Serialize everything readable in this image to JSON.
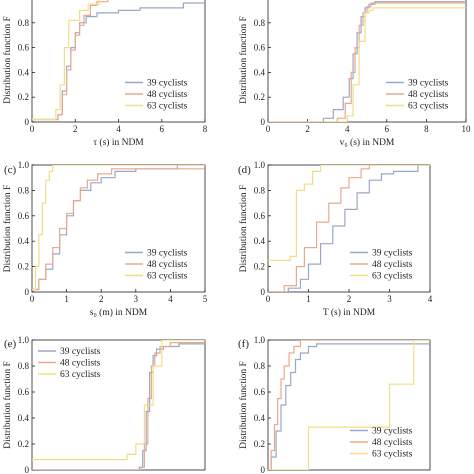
{
  "figure": {
    "series_colors": {
      "39 cyclists": "#9aa8c8",
      "48 cyclists": "#e9a98c",
      "63 cyclists": "#f2dd85"
    },
    "axis_color": "#222222"
  },
  "chart_data": [
    {
      "id": "a",
      "panel_label": "",
      "type": "line",
      "step": true,
      "xlabel": "τ (s) in NDM",
      "ylabel": "Distribution function F",
      "xlim": [
        0,
        8
      ],
      "ylim": [
        0,
        1
      ],
      "xticks": [
        "0",
        "2",
        "4",
        "6",
        "8"
      ],
      "yticks": [
        "0",
        "0.2",
        "0.4",
        "0.6",
        "0.8"
      ],
      "legend_position": "bottom-right",
      "legend": [
        "39 cyclists",
        "48 cyclists",
        "63 cyclists"
      ],
      "series": [
        {
          "name": "39 cyclists",
          "x": [
            0,
            1.2,
            1.4,
            1.6,
            1.8,
            2.0,
            2.2,
            2.5,
            3.0,
            4.0,
            5.0,
            7.0,
            8.0
          ],
          "y": [
            0.02,
            0.06,
            0.25,
            0.45,
            0.6,
            0.72,
            0.8,
            0.85,
            0.88,
            0.9,
            0.92,
            0.96,
            0.96
          ]
        },
        {
          "name": "48 cyclists",
          "x": [
            0,
            1.2,
            1.4,
            1.6,
            1.8,
            2.0,
            2.2,
            2.4,
            2.7,
            3.0,
            3.5,
            5.0,
            8.0
          ],
          "y": [
            0.02,
            0.06,
            0.22,
            0.42,
            0.58,
            0.7,
            0.78,
            0.86,
            0.94,
            0.97,
            1.0,
            1.0,
            1.0
          ]
        },
        {
          "name": "63 cyclists",
          "x": [
            0,
            1.1,
            1.3,
            1.5,
            1.7,
            2.0,
            2.2,
            2.6,
            3.1,
            5.0,
            8.0
          ],
          "y": [
            0.02,
            0.1,
            0.3,
            0.6,
            0.82,
            0.82,
            0.9,
            0.95,
            1.0,
            1.0,
            1.0
          ]
        }
      ]
    },
    {
      "id": "b",
      "panel_label": "",
      "type": "line",
      "step": true,
      "xlabel": "v₀ (s) in NDM",
      "ylabel": "Distribution function F",
      "xlim": [
        0,
        10
      ],
      "ylim": [
        0,
        1
      ],
      "xticks": [
        "0",
        "2",
        "4",
        "6",
        "8",
        "10"
      ],
      "yticks": [
        "0",
        "0.2",
        "0.4",
        "0.6",
        "0.8"
      ],
      "legend_position": "bottom-right",
      "legend": [
        "39 cyclists",
        "48 cyclists",
        "63 cyclists"
      ],
      "series": [
        {
          "name": "39 cyclists",
          "x": [
            0,
            2.8,
            3.3,
            3.8,
            4.1,
            4.3,
            4.5,
            4.7,
            4.9,
            5.1,
            5.4,
            10.0
          ],
          "y": [
            0.0,
            0.03,
            0.1,
            0.2,
            0.35,
            0.55,
            0.72,
            0.85,
            0.92,
            0.95,
            0.97,
            0.97
          ]
        },
        {
          "name": "48 cyclists",
          "x": [
            0,
            3.5,
            3.9,
            4.2,
            4.4,
            4.6,
            4.8,
            5.0,
            5.2,
            10.0
          ],
          "y": [
            0.0,
            0.03,
            0.15,
            0.4,
            0.6,
            0.78,
            0.88,
            0.93,
            0.96,
            0.96
          ]
        },
        {
          "name": "63 cyclists",
          "x": [
            0,
            4.0,
            4.3,
            4.6,
            4.9,
            5.1,
            5.3,
            10.0
          ],
          "y": [
            0.0,
            0.05,
            0.3,
            0.65,
            0.88,
            0.9,
            0.92,
            0.92
          ]
        }
      ]
    },
    {
      "id": "c",
      "panel_label": "(c)",
      "type": "line",
      "step": true,
      "xlabel": "s₀ (m) in NDM",
      "ylabel": "Distribution function F",
      "xlim": [
        0,
        5
      ],
      "ylim": [
        0,
        1
      ],
      "xticks": [
        "0",
        "1",
        "2",
        "3",
        "4",
        "5"
      ],
      "yticks": [
        "0",
        "0.2",
        "0.4",
        "0.6",
        "0.8",
        "1.0"
      ],
      "legend_position": "bottom-right",
      "legend": [
        "39 cyclists",
        "48 cyclists",
        "63 cyclists"
      ],
      "series": [
        {
          "name": "39 cyclists",
          "x": [
            0,
            0.2,
            0.4,
            0.6,
            0.8,
            1.0,
            1.2,
            1.4,
            1.7,
            2.0,
            2.4,
            3.0,
            4.2,
            5.0
          ],
          "y": [
            0.02,
            0.1,
            0.18,
            0.3,
            0.45,
            0.6,
            0.72,
            0.8,
            0.86,
            0.9,
            0.95,
            0.97,
            1.0,
            1.0
          ]
        },
        {
          "name": "48 cyclists",
          "x": [
            0,
            0.2,
            0.4,
            0.6,
            0.8,
            1.0,
            1.2,
            1.4,
            1.6,
            1.9,
            2.3,
            5.0
          ],
          "y": [
            0.02,
            0.1,
            0.22,
            0.35,
            0.5,
            0.62,
            0.72,
            0.82,
            0.88,
            0.93,
            0.97,
            0.97
          ]
        },
        {
          "name": "63 cyclists",
          "x": [
            0,
            0.1,
            0.2,
            0.3,
            0.4,
            0.5,
            0.6,
            5.0
          ],
          "y": [
            0.02,
            0.2,
            0.45,
            0.7,
            0.88,
            0.95,
            1.0,
            1.0
          ]
        }
      ]
    },
    {
      "id": "d",
      "panel_label": "(d)",
      "type": "line",
      "step": true,
      "xlabel": "T (s) in NDM",
      "ylabel": "Distribution function F",
      "xlim": [
        0,
        4
      ],
      "ylim": [
        0,
        1
      ],
      "xticks": [
        "0",
        "1",
        "2",
        "3",
        "4"
      ],
      "yticks": [
        "0",
        "0.2",
        "0.4",
        "0.6",
        "0.8",
        "1.0"
      ],
      "legend_position": "bottom-right",
      "legend": [
        "39 cyclists",
        "48 cyclists",
        "63 cyclists"
      ],
      "series": [
        {
          "name": "39 cyclists",
          "x": [
            0,
            0.5,
            0.8,
            1.0,
            1.3,
            1.6,
            1.9,
            2.2,
            2.5,
            2.8,
            3.1,
            3.7,
            4.0
          ],
          "y": [
            0.0,
            0.03,
            0.1,
            0.22,
            0.38,
            0.52,
            0.65,
            0.78,
            0.88,
            0.93,
            0.95,
            1.0,
            1.0
          ]
        },
        {
          "name": "48 cyclists",
          "x": [
            0,
            0.4,
            0.7,
            0.9,
            1.2,
            1.5,
            1.8,
            2.0,
            2.3,
            2.5,
            4.0
          ],
          "y": [
            0.0,
            0.05,
            0.2,
            0.35,
            0.55,
            0.7,
            0.82,
            0.9,
            0.97,
            1.0,
            1.0
          ]
        },
        {
          "name": "63 cyclists",
          "x": [
            0,
            0.55,
            0.7,
            0.9,
            1.1,
            1.3,
            4.0
          ],
          "y": [
            0.25,
            0.28,
            0.8,
            0.85,
            0.95,
            1.0,
            1.0
          ]
        }
      ]
    },
    {
      "id": "e",
      "panel_label": "(e)",
      "type": "line",
      "step": true,
      "xlabel": "",
      "ylabel": "Distribution function F",
      "xlim": [
        0,
        1
      ],
      "ylim": [
        0,
        1
      ],
      "xticks": [],
      "yticks": [
        "0",
        "0.2",
        "0.4",
        "0.6",
        "0.8",
        "1.0"
      ],
      "legend_position": "top-left",
      "legend": [
        "39 cyclists",
        "48 cyclists",
        "63 cyclists"
      ],
      "series": [
        {
          "name": "39 cyclists",
          "x": [
            0,
            0.62,
            0.64,
            0.66,
            0.68,
            0.7,
            0.72,
            0.76,
            0.85,
            1.0
          ],
          "y": [
            0.0,
            0.02,
            0.15,
            0.45,
            0.75,
            0.88,
            0.93,
            0.95,
            0.97,
            0.97
          ]
        },
        {
          "name": "48 cyclists",
          "x": [
            0,
            0.63,
            0.65,
            0.67,
            0.69,
            0.71,
            0.74,
            0.8,
            1.0
          ],
          "y": [
            0.0,
            0.02,
            0.2,
            0.55,
            0.8,
            0.9,
            0.95,
            0.98,
            0.98
          ]
        },
        {
          "name": "63 cyclists",
          "x": [
            0,
            0.55,
            0.6,
            0.65,
            0.7,
            0.75,
            1.0
          ],
          "y": [
            0.08,
            0.12,
            0.2,
            0.5,
            0.8,
            1.0,
            1.0
          ]
        }
      ]
    },
    {
      "id": "f",
      "panel_label": "(f)",
      "type": "line",
      "step": true,
      "xlabel": "",
      "ylabel": "Distribution function F",
      "xlim": [
        0,
        1
      ],
      "ylim": [
        0,
        1
      ],
      "xticks": [],
      "yticks": [
        "0",
        "0.2",
        "0.4",
        "0.6",
        "0.8",
        "1.0"
      ],
      "legend_position": "bottom-right",
      "legend": [
        "39 cyclists",
        "48 cyclists",
        "63 cyclists"
      ],
      "series": [
        {
          "name": "39 cyclists",
          "x": [
            0,
            0.02,
            0.05,
            0.08,
            0.11,
            0.14,
            0.17,
            0.2,
            0.25,
            0.3,
            0.45,
            1.0
          ],
          "y": [
            0.0,
            0.1,
            0.3,
            0.5,
            0.65,
            0.75,
            0.85,
            0.9,
            0.95,
            0.97,
            0.97,
            0.97
          ]
        },
        {
          "name": "48 cyclists",
          "x": [
            0,
            0.02,
            0.04,
            0.06,
            0.08,
            0.1,
            0.13,
            0.16,
            0.2,
            1.0
          ],
          "y": [
            0.0,
            0.15,
            0.35,
            0.55,
            0.7,
            0.8,
            0.9,
            0.95,
            1.0,
            1.0
          ]
        },
        {
          "name": "63 cyclists",
          "x": [
            0,
            0.25,
            0.75,
            0.9,
            1.0
          ],
          "y": [
            0.0,
            0.33,
            0.66,
            1.0,
            1.0
          ]
        }
      ]
    }
  ]
}
